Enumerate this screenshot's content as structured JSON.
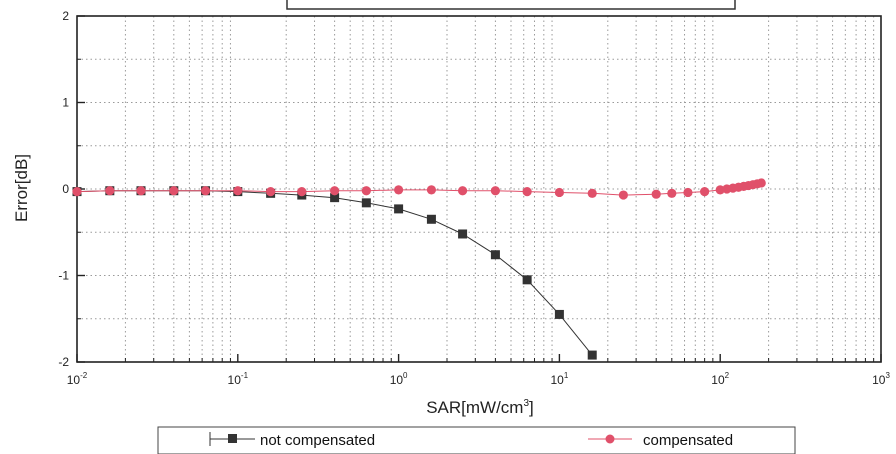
{
  "chart_data": {
    "type": "line",
    "title": "",
    "xlabel": "SAR[mW/cm",
    "xlabel_sup": "3",
    "xlabel_close": "]",
    "ylabel": "Error[dB]",
    "x_scale": "log",
    "xlim": [
      0.01,
      1000
    ],
    "ylim": [
      -2,
      2
    ],
    "x_ticks": [
      {
        "value": 0.01,
        "base": "10",
        "exp": "-2"
      },
      {
        "value": 0.1,
        "base": "10",
        "exp": "-1"
      },
      {
        "value": 1,
        "base": "10",
        "exp": "0"
      },
      {
        "value": 10,
        "base": "10",
        "exp": "1"
      },
      {
        "value": 100,
        "base": "10",
        "exp": "2"
      },
      {
        "value": 1000,
        "base": "10",
        "exp": "3"
      }
    ],
    "y_ticks": [
      {
        "value": 2,
        "label": "2"
      },
      {
        "value": 1,
        "label": "1"
      },
      {
        "value": 0,
        "label": "0"
      },
      {
        "value": -1,
        "label": "-1"
      },
      {
        "value": -2,
        "label": "-2"
      }
    ],
    "grid": true,
    "legend_position": "bottom",
    "series": [
      {
        "name": "not compensated",
        "marker": "square",
        "color": "#333333",
        "x": [
          0.01,
          0.016,
          0.025,
          0.04,
          0.063,
          0.1,
          0.16,
          0.25,
          0.4,
          0.63,
          1.0,
          1.6,
          2.5,
          4.0,
          6.3,
          10.0,
          16.0
        ],
        "y": [
          -0.03,
          -0.02,
          -0.02,
          -0.02,
          -0.02,
          -0.03,
          -0.05,
          -0.07,
          -0.1,
          -0.16,
          -0.23,
          -0.35,
          -0.52,
          -0.76,
          -1.05,
          -1.45,
          -1.92
        ]
      },
      {
        "name": "compensated",
        "marker": "circle",
        "color": "#e0506a",
        "x": [
          0.01,
          0.016,
          0.025,
          0.04,
          0.063,
          0.1,
          0.16,
          0.25,
          0.4,
          0.63,
          1.0,
          1.6,
          2.5,
          4.0,
          6.3,
          10.0,
          16.0,
          25.0,
          40.0,
          50.0,
          63.0,
          80.0,
          100.0,
          110.0,
          120.0,
          130.0,
          140.0,
          150.0,
          160.0,
          170.0,
          180.0
        ],
        "y": [
          -0.03,
          -0.02,
          -0.02,
          -0.02,
          -0.02,
          -0.02,
          -0.03,
          -0.03,
          -0.02,
          -0.02,
          -0.01,
          -0.01,
          -0.02,
          -0.02,
          -0.03,
          -0.04,
          -0.05,
          -0.07,
          -0.06,
          -0.05,
          -0.04,
          -0.03,
          -0.01,
          0.0,
          0.01,
          0.02,
          0.03,
          0.04,
          0.05,
          0.06,
          0.07
        ]
      }
    ]
  }
}
